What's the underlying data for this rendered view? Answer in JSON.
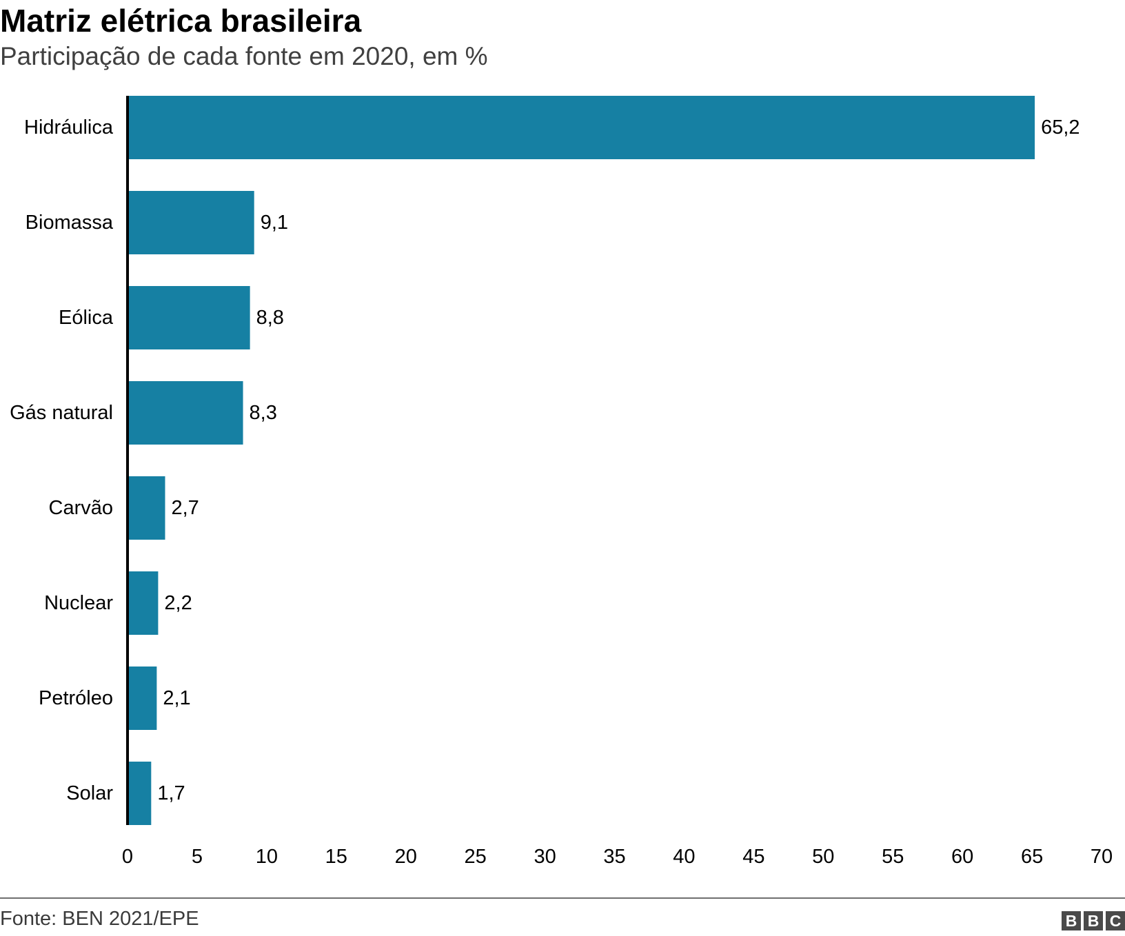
{
  "header": {
    "title": "Matriz elétrica brasileira",
    "subtitle": "Participação de cada fonte em 2020, em %"
  },
  "footer": {
    "source": "Fonte: BEN 2021/EPE",
    "logo_letters": [
      "B",
      "B",
      "C"
    ]
  },
  "colors": {
    "bar": "#1680a3",
    "axis": "#000000",
    "text": "#000000"
  },
  "chart_data": {
    "type": "bar",
    "orientation": "horizontal",
    "title": "Matriz elétrica brasileira",
    "subtitle": "Participação de cada fonte em 2020, em %",
    "categories": [
      "Hidráulica",
      "Biomassa",
      "Eólica",
      "Gás natural",
      "Carvão",
      "Nuclear",
      "Petróleo",
      "Solar"
    ],
    "values": [
      65.2,
      9.1,
      8.8,
      8.3,
      2.7,
      2.2,
      2.1,
      1.7
    ],
    "value_labels": [
      "65,2",
      "9,1",
      "8,8",
      "8,3",
      "2,7",
      "2,2",
      "2,1",
      "1,7"
    ],
    "xlim": [
      0,
      70
    ],
    "xticks": [
      0,
      5,
      10,
      15,
      20,
      25,
      30,
      35,
      40,
      45,
      50,
      55,
      60,
      65,
      70
    ],
    "xlabel": "",
    "ylabel": "",
    "grid": false,
    "legend": "none"
  }
}
